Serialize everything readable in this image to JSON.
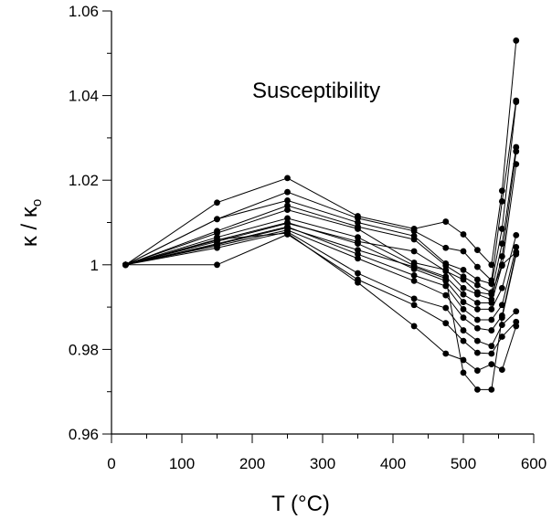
{
  "chart_data": {
    "type": "line",
    "title": "",
    "annotation": "Susceptibility",
    "xlabel": "T (°C)",
    "ylabel": "κ / κ",
    "ylabel_subscript": "o",
    "xlim": [
      0,
      600
    ],
    "ylim": [
      0.96,
      1.06
    ],
    "xticks": [
      0,
      100,
      200,
      300,
      400,
      500,
      600
    ],
    "xtick_labels": [
      "0",
      "100",
      "200",
      "300",
      "400",
      "500",
      "600"
    ],
    "yticks": [
      0.96,
      0.98,
      1.0,
      1.02,
      1.04,
      1.06
    ],
    "ytick_labels": [
      "0.96",
      "0.98",
      "1",
      "1.02",
      "1.04",
      "1.06"
    ],
    "grid": false,
    "legend": "none",
    "marker": "filled-circle",
    "color": "#000000",
    "x": [
      20,
      150,
      250,
      350,
      430,
      475,
      500,
      520,
      540,
      555,
      575
    ],
    "series": [
      {
        "values": [
          1.0,
          1.0147,
          1.0205,
          1.0115,
          1.0085,
          1.0102,
          1.0072,
          1.0035,
          1.0,
          1.0175,
          1.053
        ]
      },
      {
        "values": [
          1.0,
          1.0108,
          1.0172,
          1.011,
          1.008,
          1.004,
          1.0032,
          0.9995,
          0.9963,
          1.015,
          1.0388
        ]
      },
      {
        "values": [
          1.0,
          1.0108,
          1.0152,
          1.01,
          1.0068,
          1.0003,
          0.9988,
          0.9965,
          0.9955,
          1.0085,
          1.0385
        ]
      },
      {
        "values": [
          1.0,
          1.008,
          1.014,
          1.009,
          1.006,
          0.9998,
          0.9972,
          0.9952,
          0.9935,
          1.005,
          1.0278
        ]
      },
      {
        "values": [
          1.0,
          1.0075,
          1.013,
          1.0085,
          1.0005,
          0.9988,
          0.9945,
          0.993,
          0.9918,
          1.002,
          1.0268
        ]
      },
      {
        "values": [
          1.0,
          1.0065,
          1.011,
          1.0065,
          0.9998,
          0.9972,
          0.993,
          0.991,
          0.991,
          0.9998,
          1.0238
        ]
      },
      {
        "values": [
          1.0,
          1.0058,
          1.01,
          1.005,
          0.999,
          0.9962,
          0.9912,
          0.9895,
          0.9895,
          0.9945,
          1.007
        ]
      },
      {
        "values": [
          1.0,
          1.005,
          1.009,
          1.0025,
          0.9975,
          0.995,
          0.9895,
          0.987,
          0.987,
          0.9905,
          1.0042
        ]
      },
      {
        "values": [
          1.0,
          1.0045,
          1.0082,
          1.0015,
          0.9962,
          0.9928,
          0.9875,
          0.985,
          0.9845,
          0.988,
          1.003
        ]
      },
      {
        "values": [
          1.0,
          1.004,
          1.0078,
          0.998,
          0.992,
          0.9898,
          0.9845,
          0.982,
          0.9808,
          0.9858,
          0.989
        ]
      },
      {
        "values": [
          1.0,
          1.0,
          1.0072,
          0.9965,
          0.9905,
          0.9862,
          0.982,
          0.9792,
          0.979,
          0.983,
          0.9865
        ]
      },
      {
        "values": [
          1.0,
          1.006,
          1.0075,
          0.9958,
          0.9855,
          0.979,
          0.9775,
          0.975,
          0.9765,
          0.9752,
          0.9855
        ]
      },
      {
        "values": [
          1.0,
          1.0055,
          1.0098,
          1.0055,
          1.0032,
          0.9985,
          0.9965,
          0.9935,
          0.993,
          1.0,
          1.003
        ]
      },
      {
        "values": [
          1.0,
          1.0048,
          1.0088,
          1.0035,
          0.9995,
          0.9968,
          0.9745,
          0.9705,
          0.9705,
          0.9875,
          1.0025
        ]
      }
    ]
  }
}
